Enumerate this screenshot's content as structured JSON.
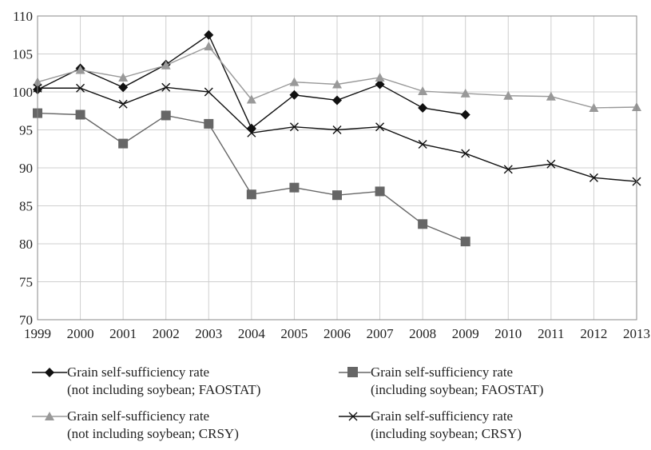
{
  "chart_data": {
    "type": "line",
    "title": "",
    "xlabel": "",
    "ylabel": "",
    "ylim": [
      70,
      110
    ],
    "yticks": [
      70,
      75,
      80,
      85,
      90,
      95,
      100,
      105,
      110
    ],
    "categories": [
      "1999",
      "2000",
      "2001",
      "2002",
      "2003",
      "2004",
      "2005",
      "2006",
      "2007",
      "2008",
      "2009",
      "2010",
      "2011",
      "2012",
      "2013"
    ],
    "grid": true,
    "legend_position": "bottom",
    "series": [
      {
        "name_line1": "Grain self-sufficiency rate",
        "name_line2": "(not including soybean; FAOSTAT)",
        "marker": "diamond",
        "color": "#111111",
        "values": [
          100.3,
          103.1,
          100.6,
          103.6,
          107.5,
          95.2,
          99.6,
          98.9,
          101.0,
          97.9,
          97.0,
          null,
          null,
          null,
          null
        ]
      },
      {
        "name_line1": "Grain self-sufficiency rate",
        "name_line2": "(including soybean; FAOSTAT)",
        "marker": "square",
        "color": "#666666",
        "values": [
          97.2,
          97.0,
          93.2,
          96.9,
          95.8,
          86.5,
          87.4,
          86.4,
          86.9,
          82.6,
          80.3,
          null,
          null,
          null,
          null
        ]
      },
      {
        "name_line1": "Grain self-sufficiency rate",
        "name_line2": "(not including soybean; CRSY)",
        "marker": "triangle",
        "color": "#999999",
        "values": [
          101.3,
          102.9,
          101.9,
          103.5,
          106.0,
          99.0,
          101.3,
          101.0,
          101.9,
          100.1,
          99.8,
          99.5,
          99.4,
          97.9,
          98.0
        ]
      },
      {
        "name_line1": "Grain self-sufficiency rate",
        "name_line2": "(including soybean; CRSY)",
        "marker": "x",
        "color": "#111111",
        "values": [
          100.5,
          100.5,
          98.4,
          100.6,
          100.0,
          94.6,
          95.4,
          95.0,
          95.4,
          93.1,
          91.9,
          89.8,
          90.5,
          88.7,
          88.2
        ]
      }
    ]
  }
}
